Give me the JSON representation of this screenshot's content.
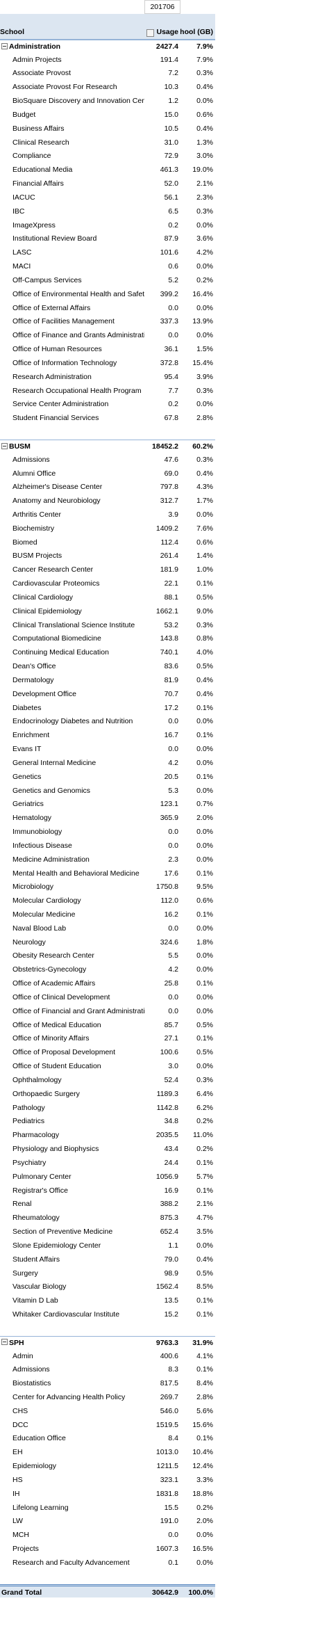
{
  "header": {
    "period": "201706",
    "columns": [
      "School",
      "Usage",
      "Usage Dept to School (GB)"
    ]
  },
  "groups": [
    {
      "name": "Administration",
      "usage": "2427.4",
      "pct": "7.9%",
      "rows": [
        [
          "Admin Projects",
          "191.4",
          "7.9%"
        ],
        [
          "Associate Provost",
          "7.2",
          "0.3%"
        ],
        [
          "Associate Provost For Research",
          "10.3",
          "0.4%"
        ],
        [
          "BioSquare Discovery and Innovation Center",
          "1.2",
          "0.0%"
        ],
        [
          "Budget",
          "15.0",
          "0.6%"
        ],
        [
          "Business Affairs",
          "10.5",
          "0.4%"
        ],
        [
          "Clinical Research",
          "31.0",
          "1.3%"
        ],
        [
          "Compliance",
          "72.9",
          "3.0%"
        ],
        [
          "Educational Media",
          "461.3",
          "19.0%"
        ],
        [
          "Financial Affairs",
          "52.0",
          "2.1%"
        ],
        [
          "IACUC",
          "56.1",
          "2.3%"
        ],
        [
          "IBC",
          "6.5",
          "0.3%"
        ],
        [
          "ImageXpress",
          "0.2",
          "0.0%"
        ],
        [
          "Institutional Review Board",
          "87.9",
          "3.6%"
        ],
        [
          "LASC",
          "101.6",
          "4.2%"
        ],
        [
          "MACI",
          "0.6",
          "0.0%"
        ],
        [
          "Off-Campus Services",
          "5.2",
          "0.2%"
        ],
        [
          "Office of Environmental Health and Safety",
          "399.2",
          "16.4%"
        ],
        [
          "Office of External Affairs",
          "0.0",
          "0.0%"
        ],
        [
          "Office of Facilities Management",
          "337.3",
          "13.9%"
        ],
        [
          "Office of Finance and Grants Administration",
          "0.0",
          "0.0%"
        ],
        [
          "Office of Human Resources",
          "36.1",
          "1.5%"
        ],
        [
          "Office of Information Technology",
          "372.8",
          "15.4%"
        ],
        [
          "Research Administration",
          "95.4",
          "3.9%"
        ],
        [
          "Research Occupational Health Program",
          "7.7",
          "0.3%"
        ],
        [
          "Service Center Administration",
          "0.2",
          "0.0%"
        ],
        [
          "Student Financial Services",
          "67.8",
          "2.8%"
        ]
      ]
    },
    {
      "name": "BUSM",
      "usage": "18452.2",
      "pct": "60.2%",
      "rows": [
        [
          "Admissions",
          "47.6",
          "0.3%"
        ],
        [
          "Alumni Office",
          "69.0",
          "0.4%"
        ],
        [
          "Alzheimer's Disease Center",
          "797.8",
          "4.3%"
        ],
        [
          "Anatomy and Neurobiology",
          "312.7",
          "1.7%"
        ],
        [
          "Arthritis Center",
          "3.9",
          "0.0%"
        ],
        [
          "Biochemistry",
          "1409.2",
          "7.6%"
        ],
        [
          "Biomed",
          "112.4",
          "0.6%"
        ],
        [
          "BUSM Projects",
          "261.4",
          "1.4%"
        ],
        [
          "Cancer Research Center",
          "181.9",
          "1.0%"
        ],
        [
          "Cardiovascular Proteomics",
          "22.1",
          "0.1%"
        ],
        [
          "Clinical Cardiology",
          "88.1",
          "0.5%"
        ],
        [
          "Clinical Epidemiology",
          "1662.1",
          "9.0%"
        ],
        [
          "Clinical Translational Science Institute",
          "53.2",
          "0.3%"
        ],
        [
          "Computational Biomedicine",
          "143.8",
          "0.8%"
        ],
        [
          "Continuing Medical Education",
          "740.1",
          "4.0%"
        ],
        [
          "Dean's Office",
          "83.6",
          "0.5%"
        ],
        [
          "Dermatology",
          "81.9",
          "0.4%"
        ],
        [
          "Development Office",
          "70.7",
          "0.4%"
        ],
        [
          "Diabetes",
          "17.2",
          "0.1%"
        ],
        [
          "Endocrinology Diabetes and Nutrition",
          "0.0",
          "0.0%"
        ],
        [
          "Enrichment",
          "16.7",
          "0.1%"
        ],
        [
          "Evans IT",
          "0.0",
          "0.0%"
        ],
        [
          "General Internal Medicine",
          "4.2",
          "0.0%"
        ],
        [
          "Genetics",
          "20.5",
          "0.1%"
        ],
        [
          "Genetics and Genomics",
          "5.3",
          "0.0%"
        ],
        [
          "Geriatrics",
          "123.1",
          "0.7%"
        ],
        [
          "Hematology",
          "365.9",
          "2.0%"
        ],
        [
          "Immunobiology",
          "0.0",
          "0.0%"
        ],
        [
          "Infectious Disease",
          "0.0",
          "0.0%"
        ],
        [
          "Medicine Administration",
          "2.3",
          "0.0%"
        ],
        [
          "Mental Health and Behavioral Medicine",
          "17.6",
          "0.1%"
        ],
        [
          "Microbiology",
          "1750.8",
          "9.5%"
        ],
        [
          "Molecular Cardiology",
          "112.0",
          "0.6%"
        ],
        [
          "Molecular Medicine",
          "16.2",
          "0.1%"
        ],
        [
          "Naval Blood Lab",
          "0.0",
          "0.0%"
        ],
        [
          "Neurology",
          "324.6",
          "1.8%"
        ],
        [
          "Obesity Research Center",
          "5.5",
          "0.0%"
        ],
        [
          "Obstetrics-Gynecology",
          "4.2",
          "0.0%"
        ],
        [
          "Office of Academic Affairs",
          "25.8",
          "0.1%"
        ],
        [
          "Office of Clinical Development",
          "0.0",
          "0.0%"
        ],
        [
          "Office of Financial and Grant Administration",
          "0.0",
          "0.0%"
        ],
        [
          "Office of Medical Education",
          "85.7",
          "0.5%"
        ],
        [
          "Office of Minority Affairs",
          "27.1",
          "0.1%"
        ],
        [
          "Office of Proposal Development",
          "100.6",
          "0.5%"
        ],
        [
          "Office of Student Education",
          "3.0",
          "0.0%"
        ],
        [
          "Ophthalmology",
          "52.4",
          "0.3%"
        ],
        [
          "Orthopaedic Surgery",
          "1189.3",
          "6.4%"
        ],
        [
          "Pathology",
          "1142.8",
          "6.2%"
        ],
        [
          "Pediatrics",
          "34.8",
          "0.2%"
        ],
        [
          "Pharmacology",
          "2035.5",
          "11.0%"
        ],
        [
          "Physiology and Biophysics",
          "43.4",
          "0.2%"
        ],
        [
          "Psychiatry",
          "24.4",
          "0.1%"
        ],
        [
          "Pulmonary Center",
          "1056.9",
          "5.7%"
        ],
        [
          "Registrar's Office",
          "16.9",
          "0.1%"
        ],
        [
          "Renal",
          "388.2",
          "2.1%"
        ],
        [
          "Rheumatology",
          "875.3",
          "4.7%"
        ],
        [
          "Section of Preventive Medicine",
          "652.4",
          "3.5%"
        ],
        [
          "Slone Epidemiology Center",
          "1.1",
          "0.0%"
        ],
        [
          "Student Affairs",
          "79.0",
          "0.4%"
        ],
        [
          "Surgery",
          "98.9",
          "0.5%"
        ],
        [
          "Vascular Biology",
          "1562.4",
          "8.5%"
        ],
        [
          "Vitamin D Lab",
          "13.5",
          "0.1%"
        ],
        [
          "Whitaker Cardiovascular Institute",
          "15.2",
          "0.1%"
        ]
      ]
    },
    {
      "name": "SPH",
      "usage": "9763.3",
      "pct": "31.9%",
      "rows": [
        [
          "Admin",
          "400.6",
          "4.1%"
        ],
        [
          "Admissions",
          "8.3",
          "0.1%"
        ],
        [
          "Biostatistics",
          "817.5",
          "8.4%"
        ],
        [
          "Center for Advancing Health Policy",
          "269.7",
          "2.8%"
        ],
        [
          "CHS",
          "546.0",
          "5.6%"
        ],
        [
          "DCC",
          "1519.5",
          "15.6%"
        ],
        [
          "Education Office",
          "8.4",
          "0.1%"
        ],
        [
          "EH",
          "1013.0",
          "10.4%"
        ],
        [
          "Epidemiology",
          "1211.5",
          "12.4%"
        ],
        [
          "HS",
          "323.1",
          "3.3%"
        ],
        [
          "IH",
          "1831.8",
          "18.8%"
        ],
        [
          "Lifelong Learning",
          "15.5",
          "0.2%"
        ],
        [
          "LW",
          "191.0",
          "2.0%"
        ],
        [
          "MCH",
          "0.0",
          "0.0%"
        ],
        [
          "Projects",
          "1607.3",
          "16.5%"
        ],
        [
          "Research and Faculty Advancement",
          "0.1",
          "0.0%"
        ]
      ]
    }
  ],
  "grand_total": {
    "label": "Grand Total",
    "usage": "30642.9",
    "pct": "100.0%"
  }
}
